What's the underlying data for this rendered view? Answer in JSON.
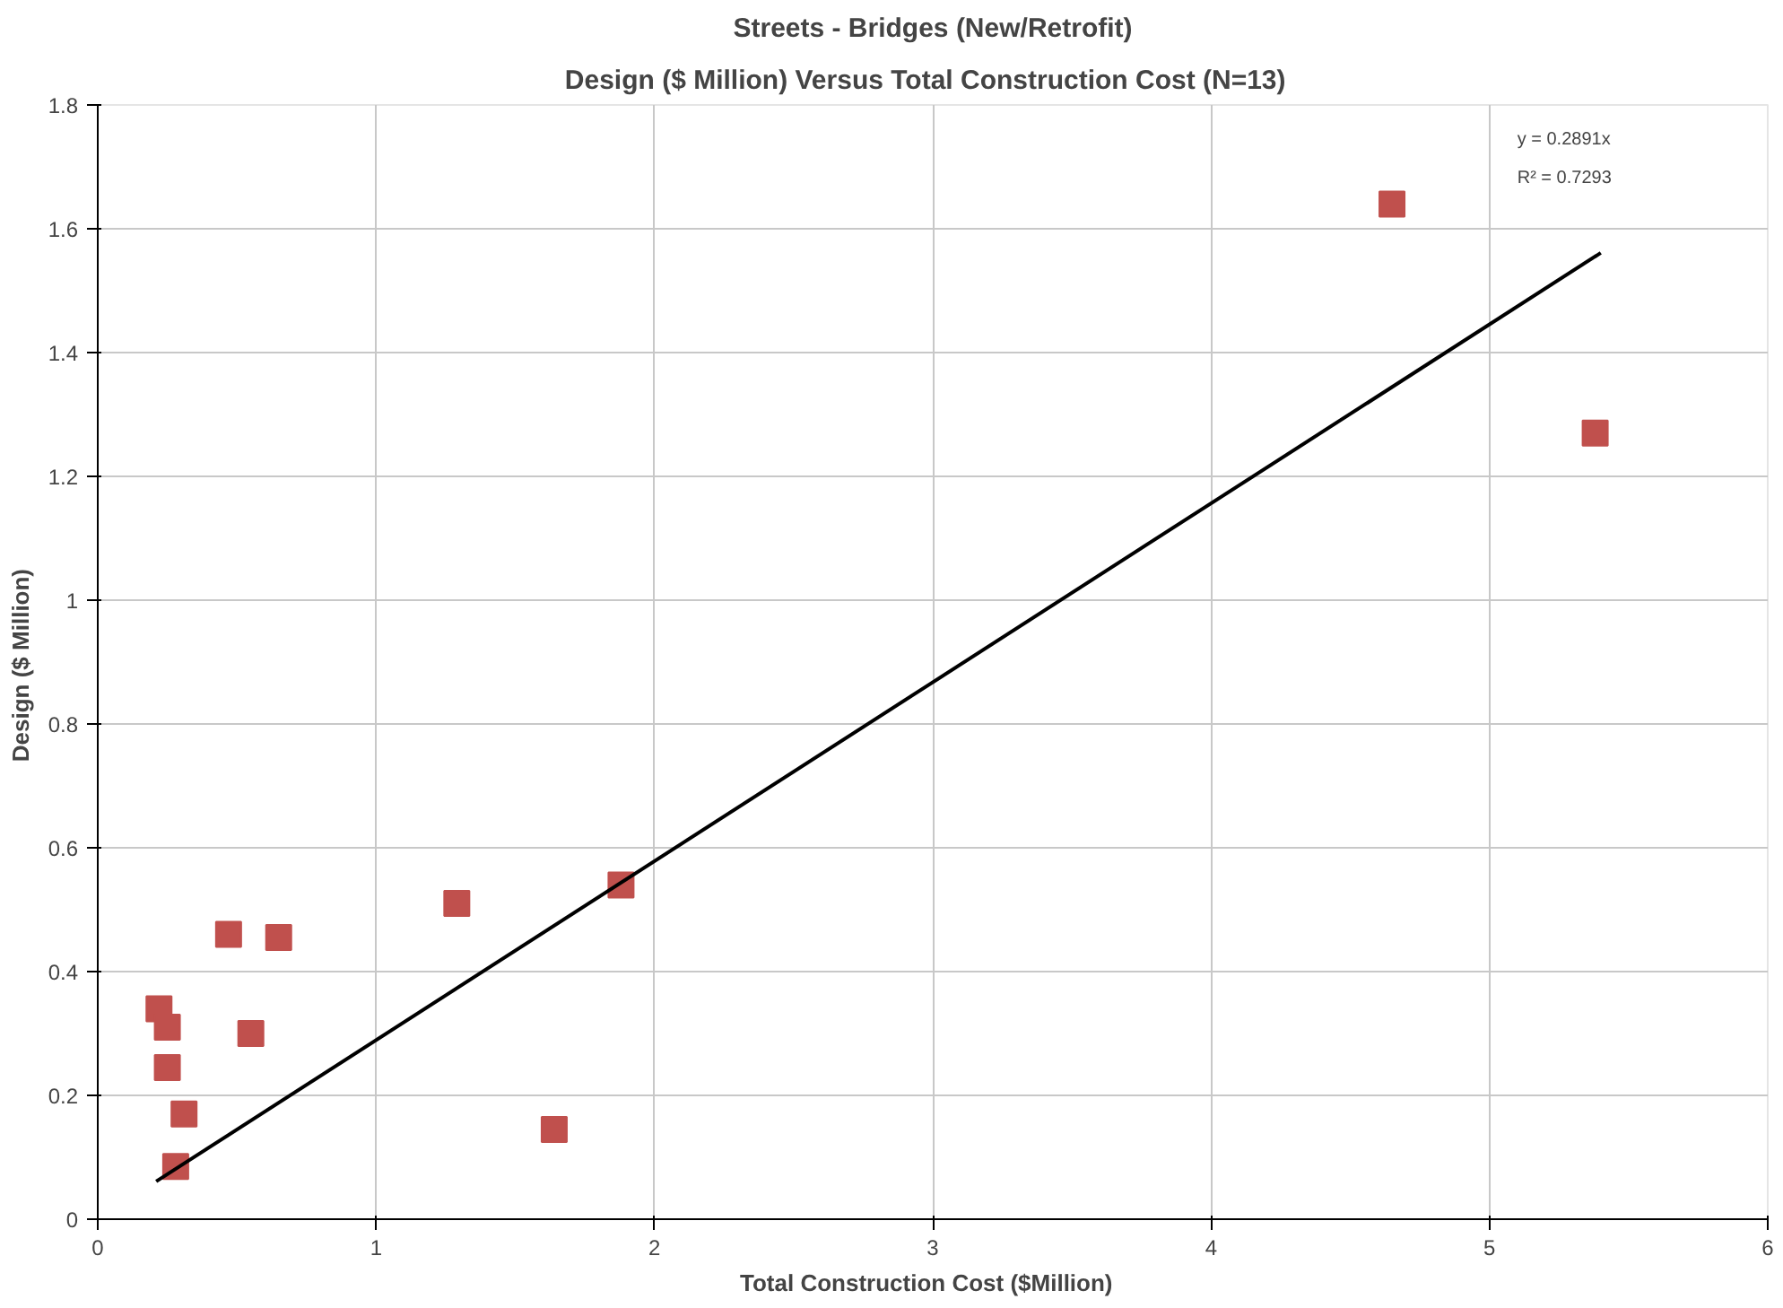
{
  "chart_data": {
    "type": "scatter",
    "title": "Streets - Bridges (New/Retrofit)",
    "subtitle": "Design  ($ Million) Versus Total Construction Cost  (N=13)",
    "xlabel": "Total Construction  Cost  ($Million)",
    "ylabel": "Design  ($ Million)",
    "xlim": [
      0,
      6
    ],
    "xticks": [
      0,
      1,
      2,
      3,
      4,
      5,
      6
    ],
    "ylim": [
      0,
      1.8
    ],
    "yticks": [
      0,
      0.2,
      0.4,
      0.6,
      0.8,
      1,
      1.2,
      1.4,
      1.6,
      1.8
    ],
    "grid": true,
    "series": [
      {
        "marker": "square",
        "color": "#c0504d",
        "x": [
          0.22,
          0.25,
          0.25,
          0.31,
          0.28,
          0.47,
          0.65,
          0.55,
          1.29,
          1.88,
          1.64,
          4.65,
          5.38
        ],
        "values": [
          0.34,
          0.31,
          0.245,
          0.17,
          0.085,
          0.46,
          0.455,
          0.3,
          0.51,
          0.54,
          0.145,
          1.64,
          1.27
        ]
      },
      {
        "type": "line",
        "color": "#000000",
        "x": [
          0.21,
          5.4
        ],
        "values": [
          0.061,
          1.561
        ]
      }
    ],
    "annotations": [
      "y = 0.2891x",
      "R² = 0.7293"
    ]
  }
}
